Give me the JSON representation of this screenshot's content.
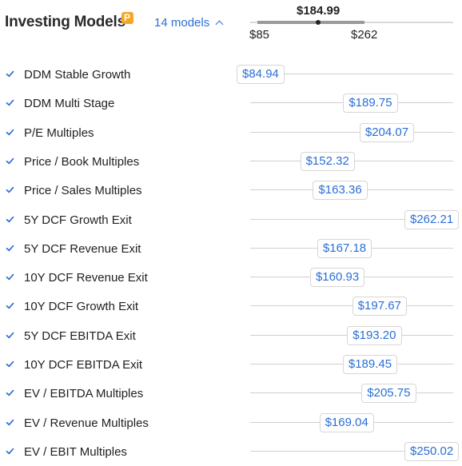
{
  "header": {
    "title": "Investing Models",
    "brand_icon_letter": "P",
    "models_toggle": "14 models",
    "range": {
      "current": "$184.99",
      "min": "$85",
      "max": "$262"
    }
  },
  "models": [
    {
      "name": "DDM Stable Growth",
      "value": "$84.94",
      "checked": true
    },
    {
      "name": "DDM Multi Stage",
      "value": "$189.75",
      "checked": true
    },
    {
      "name": "P/E Multiples",
      "value": "$204.07",
      "checked": true
    },
    {
      "name": "Price / Book Multiples",
      "value": "$152.32",
      "checked": true
    },
    {
      "name": "Price / Sales Multiples",
      "value": "$163.36",
      "checked": true
    },
    {
      "name": "5Y DCF Growth Exit",
      "value": "$262.21",
      "checked": true
    },
    {
      "name": "5Y DCF Revenue Exit",
      "value": "$167.18",
      "checked": true
    },
    {
      "name": "10Y DCF Revenue Exit",
      "value": "$160.93",
      "checked": true
    },
    {
      "name": "10Y DCF Growth Exit",
      "value": "$197.67",
      "checked": true
    },
    {
      "name": "5Y DCF EBITDA Exit",
      "value": "$193.20",
      "checked": true
    },
    {
      "name": "10Y DCF EBITDA Exit",
      "value": "$189.45",
      "checked": true
    },
    {
      "name": "EV / EBITDA Multiples",
      "value": "$205.75",
      "checked": true
    },
    {
      "name": "EV / Revenue Multiples",
      "value": "$169.04",
      "checked": true
    },
    {
      "name": "EV / EBIT Multiples",
      "value": "$250.02",
      "checked": true
    }
  ],
  "colors": {
    "accent": "#2a6fd6",
    "checkbox": "#2a6fd6",
    "brand": "#f5a623"
  },
  "icons": {
    "checkbox": "checkmark-icon",
    "brand": "brand-p-icon",
    "toggle": "chevron-up-icon"
  }
}
